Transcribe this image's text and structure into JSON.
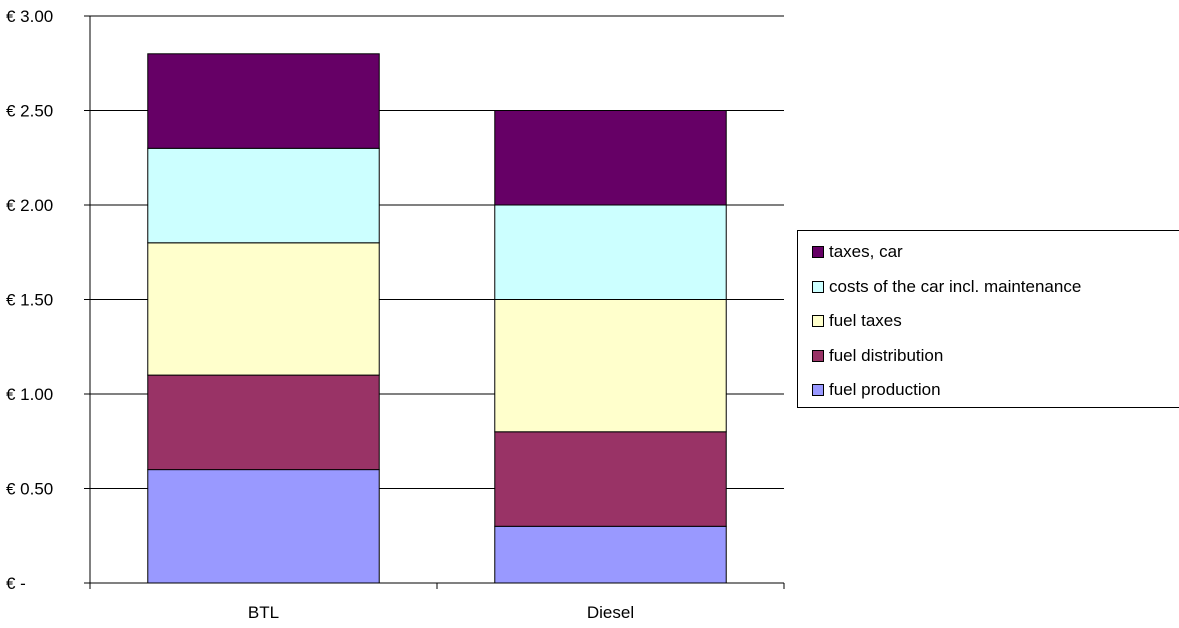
{
  "chart_data": {
    "type": "bar",
    "stacked": true,
    "categories": [
      "BTL",
      "Diesel"
    ],
    "series": [
      {
        "name": "fuel production",
        "values": [
          0.6,
          0.3
        ],
        "color": "#9999ff"
      },
      {
        "name": "fuel distribution",
        "values": [
          0.5,
          0.5
        ],
        "color": "#993366"
      },
      {
        "name": "fuel taxes",
        "values": [
          0.7,
          0.7
        ],
        "color": "#ffffcc"
      },
      {
        "name": "costs of the car incl. maintenance",
        "values": [
          0.5,
          0.5
        ],
        "color": "#ccffff"
      },
      {
        "name": "taxes, car",
        "values": [
          0.5,
          0.5
        ],
        "color": "#660066"
      }
    ],
    "ylim": [
      0,
      3.0
    ],
    "yticks": [
      0,
      0.5,
      1.0,
      1.5,
      2.0,
      2.5,
      3.0
    ],
    "ytick_labels": [
      "€ -",
      "€ 0.50",
      "€ 1.00",
      "€ 1.50",
      "€ 2.00",
      "€ 2.50",
      "€ 3.00"
    ],
    "grid": true,
    "legend_position": "right",
    "legend_order": [
      "taxes, car",
      "costs of the car incl. maintenance",
      "fuel taxes",
      "fuel distribution",
      "fuel production"
    ]
  }
}
